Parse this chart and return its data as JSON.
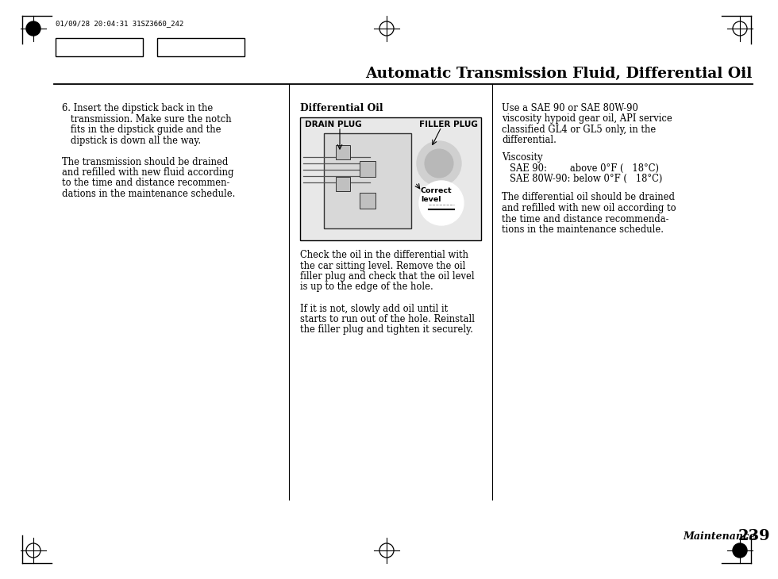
{
  "title": "Automatic Transmission Fluid, Differential Oil",
  "header_text": "01/09/28 20:04:31 31SZ3660_242",
  "page_number": "239",
  "page_label": "Maintenance",
  "left_col": [
    "6. Insert the dipstick back in the",
    "   transmission. Make sure the notch",
    "   fits in the dipstick guide and the",
    "   dipstick is down all the way.",
    "",
    "The transmission should be drained",
    "and refilled with new fluid according",
    "to the time and distance recommen-",
    "dations in the maintenance schedule."
  ],
  "mid_title": "Differential Oil",
  "drain_plug": "DRAIN PLUG",
  "filler_plug": "FILLER PLUG",
  "correct_level": "Correct\nlevel",
  "mid_col": [
    "Check the oil in the differential with",
    "the car sitting level. Remove the oil",
    "filler plug and check that the oil level",
    "is up to the edge of the hole.",
    "",
    "If it is not, slowly add oil until it",
    "starts to run out of the hole. Reinstall",
    "the filler plug and tighten it securely."
  ],
  "right_col_1": [
    "Use a SAE 90 or SAE 80W-90",
    "viscosity hypoid gear oil, API service",
    "classified GL4 or GL5 only, in the",
    "differential."
  ],
  "viscosity_title": "Viscosity",
  "sae90": "SAE 90:        above 0°F (   18°C)",
  "sae80": "SAE 80W-90: below 0°F (   18°C)",
  "right_col_2": [
    "The differential oil should be drained",
    "and refilled with new oil according to",
    "the time and distance recommenda-",
    "tions in the maintenance schedule."
  ],
  "bg_color": "#ffffff",
  "text_color": "#000000"
}
